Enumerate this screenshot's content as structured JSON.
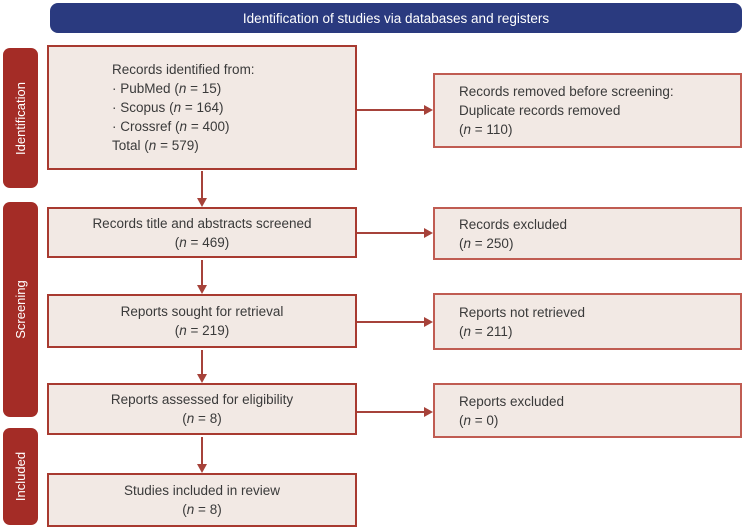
{
  "banner": {
    "title": "Identification of studies via databases and registers"
  },
  "stages": {
    "identification": "Identification",
    "screening": "Screening",
    "included": "Included"
  },
  "glyphs": {
    "bullet": "·",
    "lparen": "(",
    "n": "n",
    "eq": " = ",
    "rparen": ")"
  },
  "flow": {
    "identified": {
      "title": "Records identified from:",
      "sources": [
        {
          "name": "PubMed",
          "value": "15"
        },
        {
          "name": "Scopus",
          "value": "164"
        },
        {
          "name": "Crossref",
          "value": "400"
        }
      ],
      "total_label": "Total",
      "total_value": "579"
    },
    "screened": {
      "label": "Records title and abstracts screened",
      "value": "469"
    },
    "sought": {
      "label": "Reports sought for retrieval",
      "value": "219"
    },
    "assessed": {
      "label": "Reports assessed for eligibility",
      "value": "8"
    },
    "included": {
      "label": "Studies included in review",
      "value": "8"
    }
  },
  "exclusions": {
    "removed": {
      "line1": "Records removed before screening:",
      "line2": "Duplicate records removed",
      "value": "110"
    },
    "records_excluded": {
      "label": "Records excluded",
      "value": "250"
    },
    "not_retrieved": {
      "label": "Reports not retrieved",
      "value": "211"
    },
    "reports_excluded": {
      "label": "Reports excluded",
      "value": "0"
    }
  },
  "colors": {
    "banner_bg": "#2a3a7f",
    "stage_bg": "#a42c26",
    "box_bg": "#f2e9e4",
    "box_border_main": "#a83a30",
    "box_border_side": "#c05c52",
    "arrow": "#a6423a",
    "text": "#3a3a3a"
  }
}
